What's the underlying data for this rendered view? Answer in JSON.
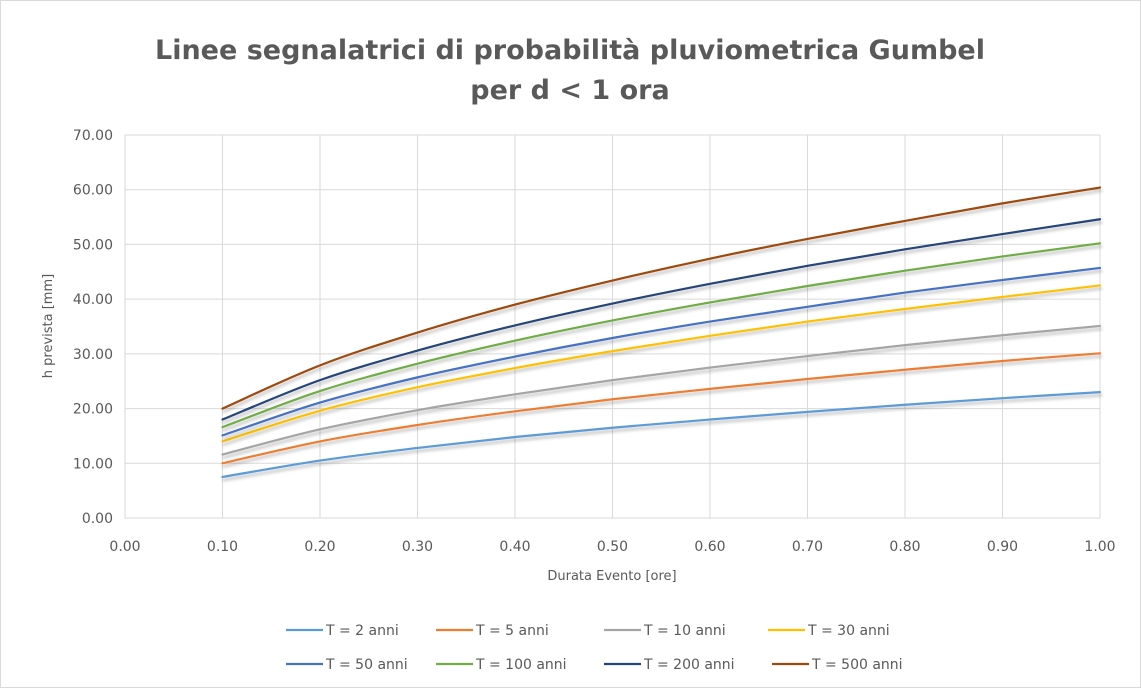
{
  "chart_data": {
    "type": "line",
    "title_line1": "Linee segnalatrici di probabilità pluviometrica Gumbel",
    "title_line2": "per d < 1 ora",
    "xlabel": "Durata Evento [ore]",
    "ylabel": "h prevista [mm]",
    "xlim": [
      0,
      1
    ],
    "ylim": [
      0,
      70
    ],
    "x_ticks": [
      "0.00",
      "0.10",
      "0.20",
      "0.30",
      "0.40",
      "0.50",
      "0.60",
      "0.70",
      "0.80",
      "0.90",
      "1.00"
    ],
    "y_ticks": [
      "0.00",
      "10.00",
      "20.00",
      "30.00",
      "40.00",
      "50.00",
      "60.00",
      "70.00"
    ],
    "grid": true,
    "legend_position": "bottom",
    "x": [
      0.1,
      0.2,
      0.3,
      0.4,
      0.5,
      0.6,
      0.7,
      0.8,
      0.9,
      1.0
    ],
    "series": [
      {
        "name": "T = 2 anni",
        "color": "#5b9bd5",
        "values": [
          7.5,
          10.5,
          12.8,
          14.8,
          16.5,
          18.0,
          19.4,
          20.7,
          21.9,
          23.0
        ]
      },
      {
        "name": "T = 5 anni",
        "color": "#ed7d31",
        "values": [
          10.0,
          14.0,
          17.0,
          19.5,
          21.7,
          23.6,
          25.4,
          27.1,
          28.7,
          30.1
        ]
      },
      {
        "name": "T = 10 anni",
        "color": "#a5a5a5",
        "values": [
          11.6,
          16.2,
          19.7,
          22.6,
          25.2,
          27.5,
          29.6,
          31.6,
          33.4,
          35.1
        ]
      },
      {
        "name": "T = 30 anni",
        "color": "#ffc000",
        "values": [
          14.0,
          19.6,
          23.9,
          27.4,
          30.5,
          33.3,
          35.9,
          38.2,
          40.4,
          42.5
        ]
      },
      {
        "name": "T = 50 anni",
        "color": "#4472c4",
        "values": [
          15.1,
          21.1,
          25.7,
          29.5,
          32.9,
          35.9,
          38.6,
          41.2,
          43.5,
          45.7
        ]
      },
      {
        "name": "T = 100 anni",
        "color": "#70ad47",
        "values": [
          16.6,
          23.2,
          28.2,
          32.4,
          36.1,
          39.4,
          42.4,
          45.2,
          47.8,
          50.2
        ]
      },
      {
        "name": "T = 200 anni",
        "color": "#264478",
        "values": [
          18.0,
          25.2,
          30.6,
          35.2,
          39.2,
          42.8,
          46.1,
          49.1,
          51.9,
          54.6
        ]
      },
      {
        "name": "T = 500 anni",
        "color": "#9e480e",
        "values": [
          20.0,
          27.9,
          33.9,
          39.0,
          43.4,
          47.4,
          51.0,
          54.3,
          57.5,
          60.4
        ]
      }
    ]
  }
}
